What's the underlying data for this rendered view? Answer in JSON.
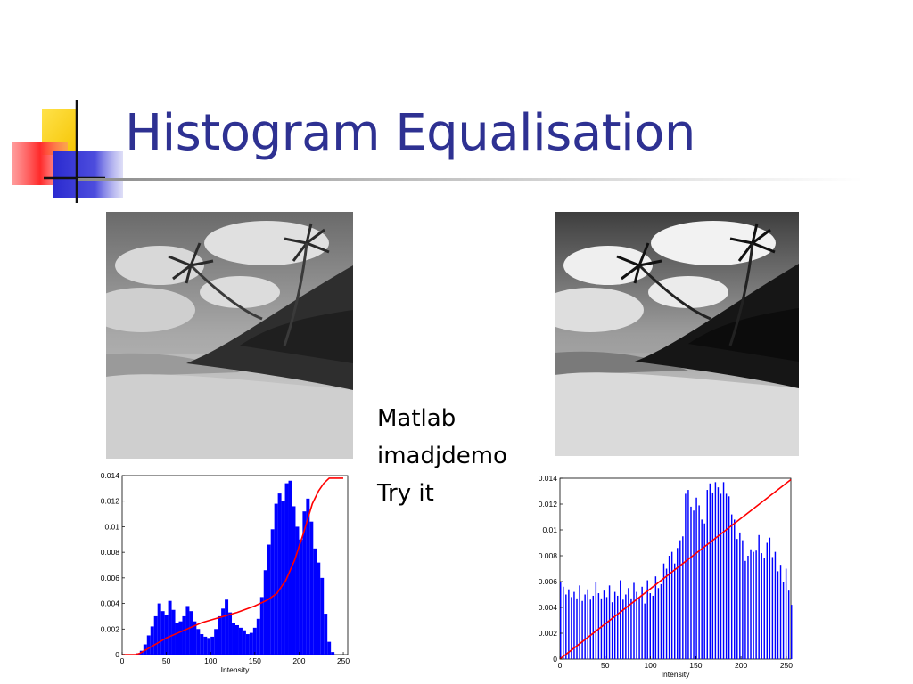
{
  "title": "Histogram Equalisation",
  "notes": [
    "Matlab",
    "imadjdemo",
    "Try it"
  ],
  "colors": {
    "title": "#2e3192",
    "histogram": "#0000ff",
    "cdf": "#ff0000",
    "logo_yellow": "#ffd700",
    "logo_red": "#ff3333",
    "logo_blue": "#3333cc"
  },
  "images": [
    {
      "name": "original-beach-photo",
      "kind": "grayscale photograph"
    },
    {
      "name": "equalised-beach-photo",
      "kind": "grayscale photograph"
    }
  ],
  "chart_data": [
    {
      "type": "bar",
      "xlabel": "Intensity",
      "ylabel": "",
      "xlim": [
        0,
        255
      ],
      "ylim": [
        0,
        0.014
      ],
      "xticks": [
        "0",
        "50",
        "100",
        "150",
        "200",
        "250"
      ],
      "yticks": [
        "0",
        "0.002",
        "0.004",
        "0.006",
        "0.008",
        "0.01",
        "0.012",
        "0.014"
      ],
      "grid": false,
      "series": [
        {
          "kind": "histogram",
          "x_start": 16,
          "x_step": 4,
          "values": [
            0.0001,
            0.0003,
            0.0008,
            0.0015,
            0.0022,
            0.003,
            0.004,
            0.0034,
            0.0031,
            0.0042,
            0.0035,
            0.0025,
            0.0026,
            0.003,
            0.0038,
            0.0034,
            0.0026,
            0.002,
            0.0016,
            0.0014,
            0.0013,
            0.0014,
            0.002,
            0.003,
            0.0036,
            0.0043,
            0.0033,
            0.0025,
            0.0023,
            0.0021,
            0.0019,
            0.0016,
            0.0017,
            0.0021,
            0.0028,
            0.0045,
            0.0066,
            0.0086,
            0.0098,
            0.0118,
            0.0126,
            0.012,
            0.0134,
            0.0136,
            0.0116,
            0.01,
            0.009,
            0.0112,
            0.0122,
            0.0104,
            0.0083,
            0.0072,
            0.006,
            0.0032,
            0.001,
            0.0002
          ]
        },
        {
          "kind": "cdf",
          "x": [
            0,
            15,
            20,
            25,
            35,
            50,
            70,
            90,
            110,
            130,
            150,
            165,
            175,
            185,
            195,
            205,
            215,
            222,
            228,
            234,
            240,
            250
          ],
          "values": [
            0,
            0,
            0.0001,
            0.0003,
            0.0007,
            0.0013,
            0.0019,
            0.0025,
            0.0029,
            0.0033,
            0.0038,
            0.0043,
            0.0048,
            0.0058,
            0.0074,
            0.0095,
            0.0118,
            0.0128,
            0.0134,
            0.0138,
            0.0138,
            0.0138
          ]
        }
      ]
    },
    {
      "type": "bar",
      "xlabel": "Intensity",
      "ylabel": "",
      "xlim": [
        0,
        255
      ],
      "ylim": [
        0,
        0.014
      ],
      "xticks": [
        "0",
        "50",
        "100",
        "150",
        "200",
        "250"
      ],
      "yticks": [
        "0",
        "0.002",
        "0.004",
        "0.006",
        "0.008",
        "0.01",
        "0.012",
        "0.014"
      ],
      "grid": false,
      "series": [
        {
          "kind": "histogram",
          "x_start": 0,
          "x_step": 3,
          "values": [
            0.006,
            0.0056,
            0.005,
            0.0054,
            0.0048,
            0.0052,
            0.0047,
            0.0057,
            0.0045,
            0.005,
            0.0054,
            0.0046,
            0.0049,
            0.006,
            0.0051,
            0.0047,
            0.0053,
            0.0048,
            0.0057,
            0.0044,
            0.0052,
            0.0049,
            0.0061,
            0.0046,
            0.005,
            0.0055,
            0.0047,
            0.0059,
            0.0052,
            0.0048,
            0.0056,
            0.0043,
            0.0061,
            0.0051,
            0.0049,
            0.0064,
            0.0055,
            0.0058,
            0.0074,
            0.007,
            0.008,
            0.0083,
            0.0074,
            0.0086,
            0.0092,
            0.0095,
            0.0128,
            0.0131,
            0.0118,
            0.0115,
            0.0125,
            0.0119,
            0.0108,
            0.0105,
            0.0131,
            0.0136,
            0.0129,
            0.0137,
            0.0133,
            0.0128,
            0.0137,
            0.0128,
            0.0126,
            0.0112,
            0.0108,
            0.0093,
            0.0098,
            0.0092,
            0.0076,
            0.008,
            0.0085,
            0.0083,
            0.0084,
            0.0096,
            0.0082,
            0.0078,
            0.009,
            0.0094,
            0.0079,
            0.0083,
            0.0068,
            0.0073,
            0.006,
            0.007,
            0.0053,
            0.0042
          ]
        },
        {
          "kind": "cdf",
          "x": [
            0,
            255
          ],
          "values": [
            0,
            0.0139
          ]
        }
      ]
    }
  ]
}
